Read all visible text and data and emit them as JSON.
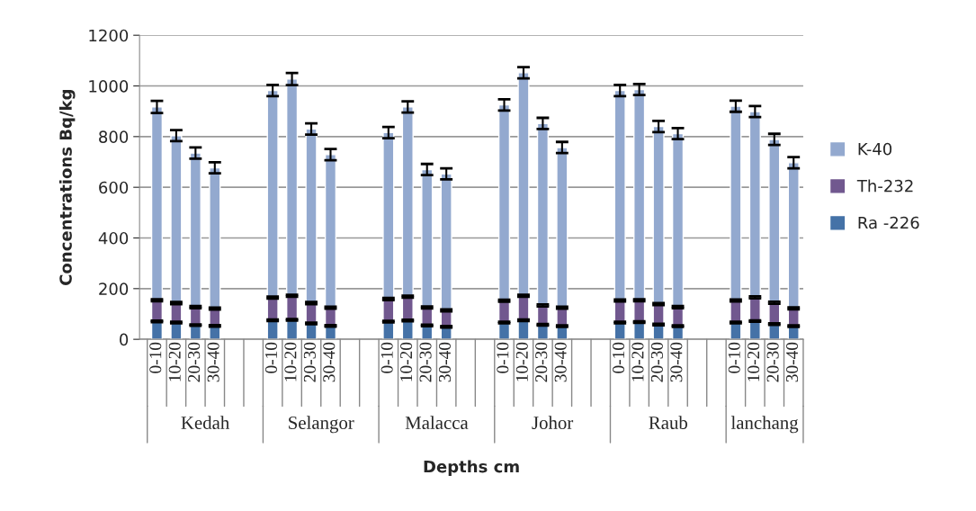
{
  "chart_data": {
    "type": "bar",
    "stacked": true,
    "xlabel": "Depths cm",
    "ylabel": "Concentrations Bq/kg",
    "categories": [
      "0-10",
      "10-20",
      "20-30",
      "30-40",
      null,
      null,
      "0-10",
      "10-20",
      "20-30",
      "30-40",
      null,
      null,
      "0-10",
      "10-20",
      "20-30",
      "30-40",
      null,
      null,
      "0-10",
      "10-20",
      "20-30",
      "30-40",
      null,
      null,
      "0-10",
      "10-20",
      "20-30",
      "30-40",
      null,
      null,
      "0-10",
      "10-20",
      "20-30",
      "30-40"
    ],
    "series": [
      {
        "name": "Ra -226",
        "color": "#4572a7",
        "values": [
          71,
          66,
          56,
          53,
          null,
          null,
          75,
          77,
          63,
          53,
          null,
          null,
          70,
          74,
          55,
          49,
          null,
          null,
          66,
          75,
          57,
          52,
          null,
          null,
          66,
          68,
          58,
          52,
          null,
          null,
          66,
          72,
          60,
          52
        ],
        "errors": [
          3,
          3,
          3,
          3,
          null,
          null,
          3,
          3,
          3,
          3,
          null,
          null,
          3,
          3,
          3,
          3,
          null,
          null,
          3,
          3,
          3,
          3,
          null,
          null,
          3,
          3,
          3,
          3,
          null,
          null,
          3,
          3,
          3,
          3
        ]
      },
      {
        "name": "Th-232",
        "color": "#71588f",
        "values": [
          83,
          77,
          71,
          68,
          null,
          null,
          90,
          95,
          80,
          72,
          null,
          null,
          89,
          94,
          71,
          65,
          null,
          null,
          86,
          97,
          77,
          73,
          null,
          null,
          87,
          86,
          81,
          75,
          null,
          null,
          87,
          94,
          84,
          70
        ],
        "errors": [
          4,
          4,
          4,
          4,
          null,
          null,
          4,
          4,
          4,
          4,
          null,
          null,
          4,
          4,
          4,
          4,
          null,
          null,
          4,
          4,
          4,
          4,
          null,
          null,
          4,
          4,
          4,
          4,
          null,
          null,
          4,
          4,
          4,
          4
        ]
      },
      {
        "name": "K-40",
        "color": "#93a9cf",
        "values": [
          763,
          661,
          608,
          556,
          null,
          null,
          817,
          855,
          687,
          604,
          null,
          null,
          657,
          749,
          544,
          539,
          null,
          null,
          773,
          880,
          718,
          632,
          null,
          null,
          829,
          832,
          701,
          685,
          null,
          null,
          767,
          733,
          645,
          575
        ],
        "errors": [
          24,
          22,
          22,
          22,
          null,
          null,
          22,
          24,
          22,
          22,
          null,
          null,
          22,
          22,
          22,
          22,
          null,
          null,
          22,
          22,
          22,
          22,
          null,
          null,
          22,
          22,
          22,
          22,
          null,
          null,
          22,
          22,
          22,
          22
        ]
      }
    ],
    "ylim": [
      0,
      1200
    ],
    "yticks": [
      0,
      200,
      400,
      600,
      800,
      1000,
      1200
    ],
    "grid": "y",
    "legend": "right",
    "annotations": [
      "Kedah",
      "Selangor",
      "Malacca",
      "Johor",
      "Raub",
      "lanchang"
    ]
  }
}
